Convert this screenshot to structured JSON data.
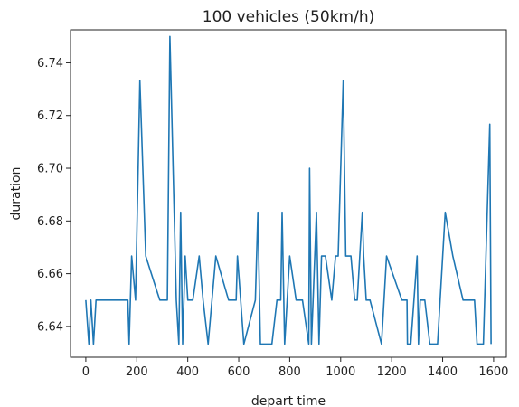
{
  "chart_data": {
    "type": "line",
    "title": "100 vehicles (50km/h)",
    "xlabel": "depart time",
    "ylabel": "duration",
    "xlim": [
      -60,
      1650
    ],
    "ylim": [
      6.6283,
      6.7525
    ],
    "xticks": [
      0,
      200,
      400,
      600,
      800,
      1000,
      1200,
      1400,
      1600
    ],
    "yticks": [
      6.64,
      6.66,
      6.68,
      6.7,
      6.72,
      6.74
    ],
    "ytick_labels": [
      "6.64",
      "6.66",
      "6.68",
      "6.70",
      "6.72",
      "6.74"
    ],
    "grid": false,
    "line_color": "#1f77b4",
    "series": [
      {
        "x": [
          0,
          12,
          20,
          30,
          40,
          60,
          100,
          140,
          165,
          170,
          180,
          195,
          212,
          235,
          290,
          320,
          330,
          355,
          365,
          372,
          380,
          390,
          400,
          420,
          445,
          460,
          480,
          510,
          560,
          590,
          595,
          620,
          665,
          675,
          685,
          700,
          730,
          750,
          765,
          770,
          780,
          800,
          825,
          850,
          875,
          878,
          885,
          905,
          915,
          925,
          940,
          965,
          980,
          990,
          1010,
          1020,
          1040,
          1055,
          1065,
          1085,
          1090,
          1100,
          1115,
          1160,
          1180,
          1240,
          1260,
          1262,
          1275,
          1300,
          1305,
          1312,
          1330,
          1350,
          1380,
          1410,
          1440,
          1480,
          1500,
          1525,
          1535,
          1560,
          1585,
          1590
        ],
        "y": [
          6.65,
          6.6333,
          6.65,
          6.6333,
          6.65,
          6.65,
          6.65,
          6.65,
          6.65,
          6.6333,
          6.6667,
          6.65,
          6.7333,
          6.6667,
          6.65,
          6.65,
          6.75,
          6.65,
          6.6333,
          6.6833,
          6.6333,
          6.6667,
          6.65,
          6.65,
          6.6667,
          6.65,
          6.6333,
          6.6667,
          6.65,
          6.65,
          6.6667,
          6.6333,
          6.65,
          6.6833,
          6.6333,
          6.6333,
          6.6333,
          6.65,
          6.65,
          6.6833,
          6.6333,
          6.6667,
          6.65,
          6.65,
          6.6333,
          6.7,
          6.6333,
          6.6833,
          6.6333,
          6.6667,
          6.6667,
          6.65,
          6.6667,
          6.6667,
          6.7333,
          6.6667,
          6.6667,
          6.65,
          6.65,
          6.6833,
          6.6667,
          6.65,
          6.65,
          6.6333,
          6.6667,
          6.65,
          6.65,
          6.6333,
          6.6333,
          6.6667,
          6.6333,
          6.65,
          6.65,
          6.6333,
          6.6333,
          6.6833,
          6.6667,
          6.65,
          6.65,
          6.65,
          6.6333,
          6.6333,
          6.7167,
          6.6333
        ]
      }
    ]
  }
}
